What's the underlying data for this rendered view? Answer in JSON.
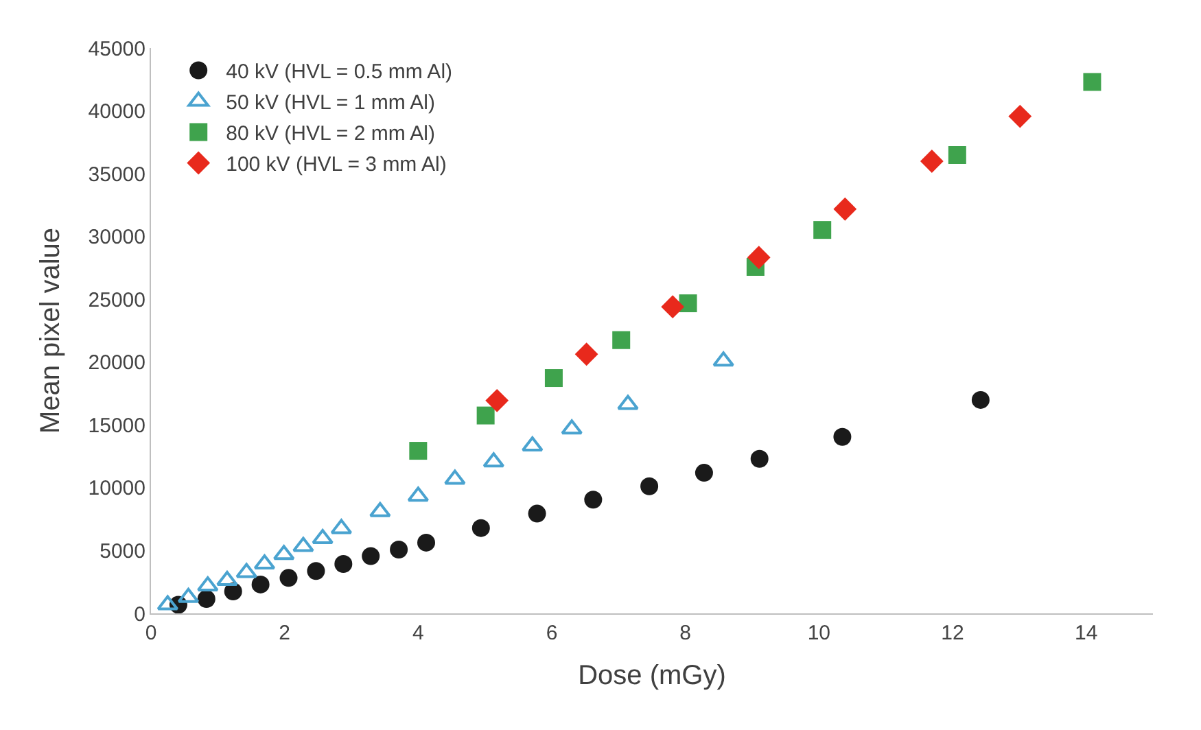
{
  "chart_data": {
    "type": "scatter",
    "xlabel": "Dose (mGy)",
    "ylabel": "Mean pixel value",
    "xlim": [
      0,
      15
    ],
    "ylim": [
      0,
      45000
    ],
    "xticks": [
      0,
      2,
      4,
      6,
      8,
      10,
      12,
      14
    ],
    "yticks": [
      0,
      5000,
      10000,
      15000,
      20000,
      25000,
      30000,
      35000,
      40000,
      45000
    ],
    "grid": false,
    "legend": "top left",
    "series": [
      {
        "name": "40 kV (HVL = 0.5 mm Al)",
        "color": "#1a1a1a",
        "marker": "circle",
        "x": [
          0.41,
          0.83,
          1.23,
          1.64,
          2.06,
          2.47,
          2.88,
          3.29,
          3.71,
          4.12,
          4.94,
          5.78,
          6.62,
          7.46,
          8.28,
          9.11,
          10.35,
          12.42
        ],
        "values": [
          680,
          1150,
          1750,
          2300,
          2820,
          3370,
          3930,
          4560,
          5080,
          5630,
          6790,
          7940,
          9050,
          10120,
          11190,
          12300,
          14050,
          16990
        ]
      },
      {
        "name": "50 kV (HVL = 1 mm Al)",
        "color": "#4aa3d0",
        "marker": "triangle",
        "x": [
          0.25,
          0.56,
          0.85,
          1.14,
          1.43,
          1.7,
          1.99,
          2.28,
          2.57,
          2.85,
          3.43,
          4.0,
          4.55,
          5.13,
          5.71,
          6.3,
          7.14,
          8.57
        ],
        "values": [
          680,
          1270,
          2180,
          2620,
          3250,
          3930,
          4680,
          5320,
          5950,
          6750,
          8100,
          9320,
          10680,
          12060,
          13330,
          14680,
          16630,
          20080
        ]
      },
      {
        "name": "80 kV (HVL = 2 mm Al)",
        "color": "#3fa34d",
        "marker": "square",
        "x": [
          4.0,
          5.01,
          6.03,
          7.04,
          8.04,
          9.05,
          10.05,
          12.07,
          14.09
        ],
        "values": [
          12940,
          15750,
          18730,
          21750,
          24680,
          27580,
          30520,
          36480,
          42300
        ]
      },
      {
        "name": "100 kV (HVL = 3 mm Al)",
        "color": "#e8291c",
        "marker": "diamond",
        "x": [
          5.18,
          6.52,
          7.81,
          9.1,
          10.39,
          11.69,
          13.01
        ],
        "values": [
          16940,
          20630,
          24400,
          28330,
          32180,
          35990,
          39560
        ]
      }
    ]
  }
}
